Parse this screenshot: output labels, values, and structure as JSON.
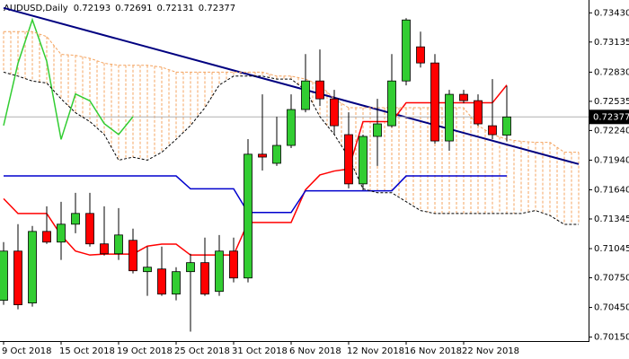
{
  "chart_data": {
    "type": "candlestick",
    "title": "AUDUSD,Daily",
    "categories": [
      "9 Oct 2018",
      null,
      null,
      null,
      "15 Oct 2018",
      null,
      null,
      null,
      "19 Oct 2018",
      null,
      null,
      null,
      "25 Oct 2018",
      null,
      null,
      null,
      "31 Oct 2018",
      null,
      null,
      null,
      "6 Nov 2018",
      null,
      null,
      null,
      "12 Nov 2018",
      null,
      null,
      null,
      "16 Nov 2018",
      null,
      null,
      null,
      "22 Nov 2018",
      null,
      null,
      null,
      null,
      null,
      null,
      null,
      null
    ],
    "open": [
      0.70522,
      0.7102,
      0.70495,
      0.71219,
      0.71111,
      0.71292,
      0.71401,
      0.71093,
      0.70993,
      0.71129,
      0.70812,
      0.70839,
      0.70585,
      0.70812,
      0.70903,
      0.70612,
      0.7102,
      0.70748,
      0.72,
      0.71908,
      0.72089,
      0.72452,
      0.72741,
      0.7256,
      0.72198,
      0.717,
      0.7218,
      0.72288,
      0.72741,
      0.73086,
      0.72923,
      0.72134,
      0.72606,
      0.72542,
      0.72288,
      0.72193,
      null,
      null,
      null,
      null,
      null
    ],
    "high": [
      0.71111,
      0.71292,
      0.71274,
      0.71473,
      0.71518,
      0.71609,
      0.71609,
      0.71473,
      0.71455,
      0.71247,
      0.71065,
      0.71065,
      0.70857,
      0.70993,
      0.71156,
      0.71183,
      0.71156,
      0.72153,
      0.72606,
      0.72379,
      0.72606,
      0.73013,
      0.73059,
      0.72651,
      0.72424,
      0.72198,
      0.7256,
      0.73013,
      0.73376,
      0.7324,
      0.73013,
      0.72651,
      0.72651,
      0.72606,
      0.7276,
      0.72691,
      null,
      null,
      null,
      null,
      null
    ],
    "low": [
      0.70477,
      0.70431,
      0.70458,
      0.71093,
      0.7093,
      0.71201,
      0.71065,
      0.70975,
      0.7093,
      0.70794,
      0.70567,
      0.70567,
      0.70522,
      0.70205,
      0.70567,
      0.70567,
      0.70703,
      0.70703,
      0.71835,
      0.71881,
      0.72062,
      0.72424,
      0.72488,
      0.72198,
      0.71654,
      0.71636,
      0.71881,
      0.7227,
      0.72696,
      0.72877,
      0.72107,
      0.72035,
      0.72515,
      0.72288,
      0.72153,
      0.72131,
      null,
      null,
      null,
      null,
      null
    ],
    "close": [
      0.7102,
      0.70477,
      0.71219,
      0.71111,
      0.71292,
      0.71401,
      0.71093,
      0.70993,
      0.71183,
      0.70821,
      0.70857,
      0.70585,
      0.70812,
      0.70903,
      0.70585,
      0.7102,
      0.70748,
      0.72,
      0.71971,
      0.72089,
      0.72452,
      0.72741,
      0.7256,
      0.72288,
      0.717,
      0.7218,
      0.72307,
      0.72741,
      0.73358,
      0.72923,
      0.72134,
      0.72606,
      0.72542,
      0.72307,
      0.72198,
      0.72377,
      null,
      null,
      null,
      null,
      null
    ],
    "up_color": "#32cd32",
    "down_color": "#ff0000",
    "series": [
      {
        "color": "#ff0000",
        "values": [
          0.7155,
          0.714,
          0.714,
          0.714,
          0.7118,
          0.7102,
          0.7098,
          0.7099,
          0.7099,
          0.7099,
          0.7107,
          0.7109,
          0.7109,
          0.7098,
          0.7098,
          0.7098,
          0.7098,
          0.7131,
          0.7131,
          0.7131,
          0.7131,
          0.7164,
          0.7179,
          0.7183,
          0.7185,
          0.7233,
          0.7233,
          0.7233,
          0.7252,
          0.7252,
          0.7252,
          0.7252,
          0.7252,
          0.7252,
          0.7252,
          0.727,
          null,
          null,
          null,
          null,
          null
        ]
      },
      {
        "color": "#0000cd",
        "values": [
          0.7178,
          0.7178,
          0.7178,
          0.7178,
          0.7178,
          0.7178,
          0.7178,
          0.7178,
          0.7178,
          0.7178,
          0.7178,
          0.7178,
          0.7178,
          0.7165,
          0.7165,
          0.7165,
          0.7165,
          0.7141,
          0.7141,
          0.7141,
          0.7141,
          0.7163,
          0.7163,
          0.7163,
          0.7163,
          0.7163,
          0.7163,
          0.7163,
          0.7178,
          0.7178,
          0.7178,
          0.7178,
          0.7178,
          0.7178,
          0.7178,
          0.7178,
          null,
          null,
          null,
          null,
          null
        ]
      },
      {
        "color": "#32cd32",
        "values": [
          0.7229,
          0.7292,
          0.7336,
          0.7294,
          0.7215,
          0.7261,
          0.7254,
          0.7231,
          0.722,
          0.7238,
          null,
          null,
          null,
          null,
          null,
          null,
          null,
          null,
          null,
          null,
          null,
          null,
          null,
          null,
          null,
          null,
          null,
          null,
          null,
          null,
          null,
          null,
          null,
          null,
          null,
          null,
          null,
          null,
          null,
          null,
          null
        ]
      },
      {
        "color": "#f4a460",
        "dashed": true,
        "values": [
          0.7324,
          0.7324,
          0.7324,
          0.7319,
          0.7301,
          0.73,
          0.7297,
          0.7292,
          0.729,
          0.729,
          0.729,
          0.7288,
          0.7283,
          0.7283,
          0.7283,
          0.7283,
          0.7283,
          0.7283,
          0.7283,
          0.7279,
          0.7279,
          0.7276,
          0.727,
          0.7256,
          0.7247,
          0.7247,
          0.7247,
          0.7247,
          0.7247,
          0.7247,
          0.7247,
          0.7247,
          0.7247,
          0.7229,
          0.722,
          0.7215,
          0.7213,
          0.7212,
          0.7212,
          0.7202,
          0.7202
        ]
      },
      {
        "color": "#000000",
        "dashed": true,
        "values": [
          0.7283,
          0.7279,
          0.7274,
          0.7272,
          0.7256,
          0.7242,
          0.7233,
          0.722,
          0.7194,
          0.7197,
          0.7194,
          0.7202,
          0.7215,
          0.7229,
          0.7247,
          0.727,
          0.7279,
          0.7279,
          0.7279,
          0.7276,
          0.7276,
          0.7265,
          0.7238,
          0.722,
          0.7197,
          0.7165,
          0.7161,
          0.7161,
          0.7152,
          0.7143,
          0.714,
          0.714,
          0.714,
          0.714,
          0.714,
          0.714,
          0.714,
          0.7143,
          0.7138,
          0.7129,
          0.7129
        ]
      }
    ],
    "cloud_color": "#f4a460",
    "trendline": {
      "color": "#000080",
      "values": [
        0.7348,
        0.719
      ]
    },
    "ylim": [
      0.7011,
      0.7356
    ],
    "yticks": [
      {
        "value": 0.7343,
        "label": "0.73430"
      },
      0.73135,
      {
        "value": 0.7283,
        "label": "0.72830"
      },
      0.72535,
      {
        "value": 0.7224,
        "label": "0.72240"
      },
      {
        "value": 0.7194,
        "label": "0.71940"
      },
      {
        "value": 0.7164,
        "label": "0.71640"
      },
      0.71345,
      0.71045,
      {
        "value": 0.7075,
        "label": "0.70750"
      },
      {
        "value": 0.7045,
        "label": "0.70450"
      },
      {
        "value": 0.7015,
        "label": "0.70150"
      }
    ]
  }
}
